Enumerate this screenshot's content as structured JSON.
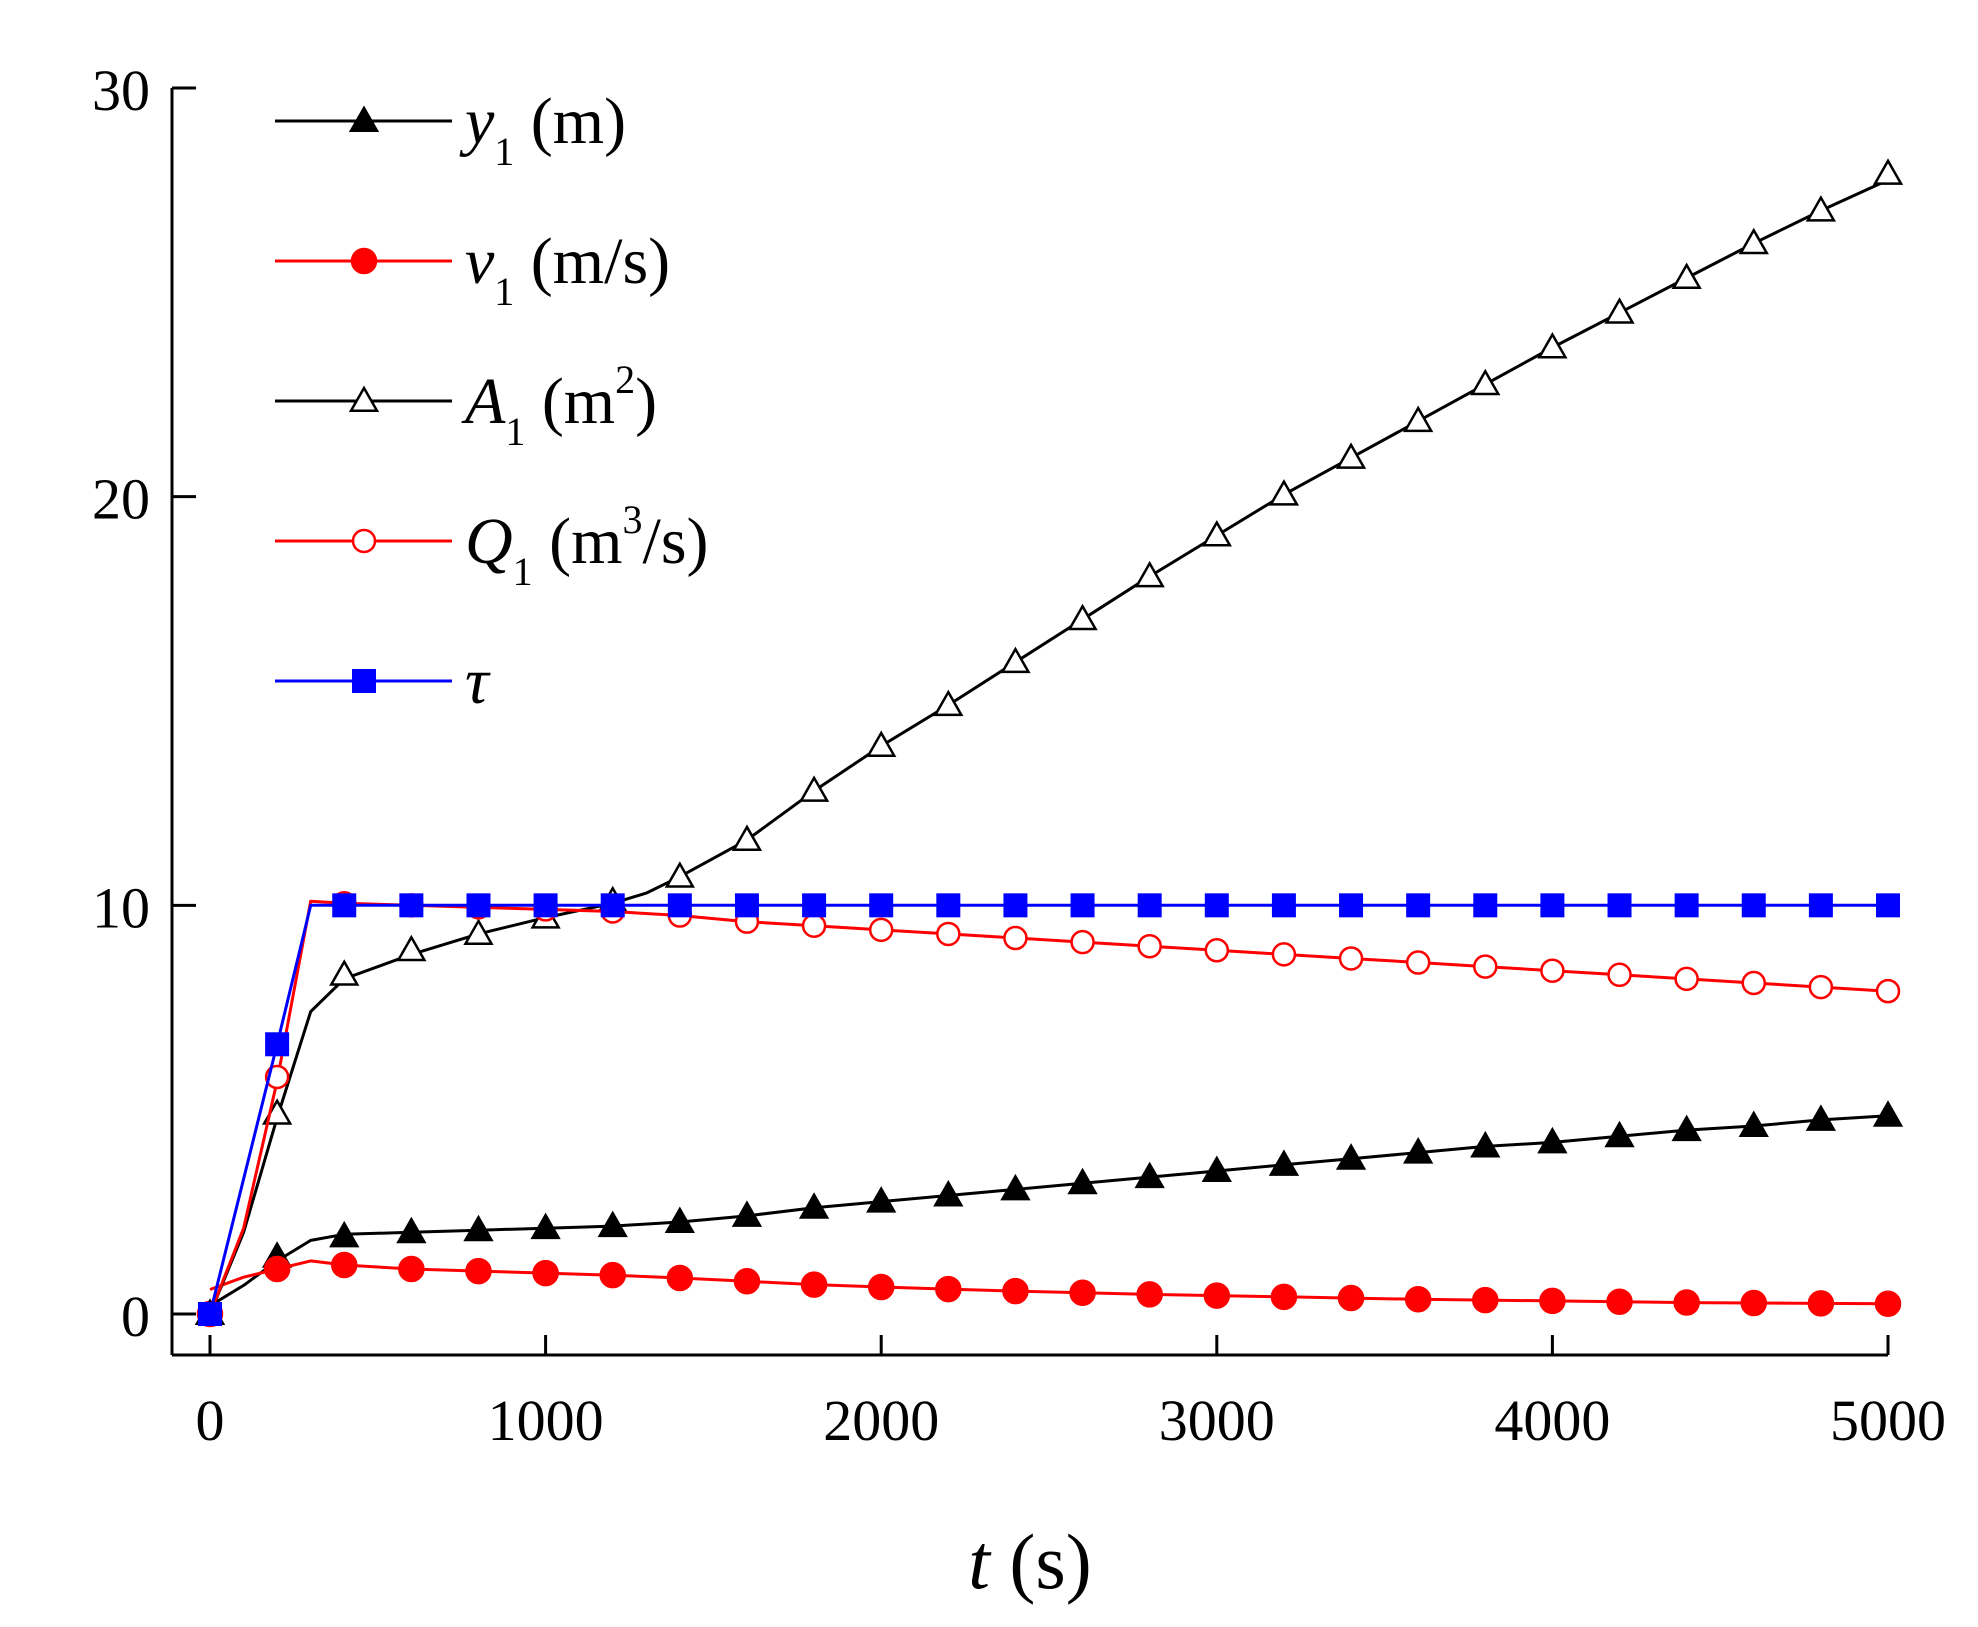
{
  "chart_data": {
    "type": "line",
    "title": "",
    "xlabel": "t (s)",
    "ylabel": "",
    "xlim": [
      -100,
      5000
    ],
    "ylim": [
      -1.1,
      30
    ],
    "xticks": [
      0,
      1000,
      2000,
      3000,
      4000,
      5000
    ],
    "yticks": [
      0,
      10,
      20,
      30
    ],
    "xtick_labels": [
      "0",
      "1000",
      "2000",
      "3000",
      "4000",
      "5000"
    ],
    "ytick_labels": [
      "0",
      "10",
      "20",
      "30"
    ],
    "grid": false,
    "legend_position": "top-left",
    "series": [
      {
        "name": "y1 (m)",
        "legend": {
          "sym": "y",
          "sub": "1",
          "unit_pre": " (m",
          "sup": "",
          "unit_post": ")"
        },
        "color": "#000000",
        "marker": "triangle-filled",
        "line": [
          [
            -30,
            -0.2
          ],
          [
            0,
            0.2
          ],
          [
            100,
            0.7
          ],
          [
            200,
            1.3
          ],
          [
            300,
            1.8
          ],
          [
            400,
            1.95
          ],
          [
            600,
            2.0
          ],
          [
            800,
            2.05
          ],
          [
            1000,
            2.1
          ],
          [
            1200,
            2.15
          ],
          [
            1400,
            2.25
          ],
          [
            1600,
            2.4
          ],
          [
            1800,
            2.6
          ],
          [
            2000,
            2.75
          ],
          [
            2200,
            2.9
          ],
          [
            2400,
            3.05
          ],
          [
            2600,
            3.2
          ],
          [
            2800,
            3.35
          ],
          [
            3000,
            3.5
          ],
          [
            3200,
            3.65
          ],
          [
            3400,
            3.8
          ],
          [
            3600,
            3.95
          ],
          [
            3800,
            4.1
          ],
          [
            4000,
            4.2
          ],
          [
            4200,
            4.35
          ],
          [
            4400,
            4.5
          ],
          [
            4600,
            4.6
          ],
          [
            4800,
            4.75
          ],
          [
            5000,
            4.85
          ]
        ],
        "markers": {
          "x": [
            0,
            200,
            400,
            600,
            800,
            1000,
            1200,
            1400,
            1600,
            1800,
            2000,
            2200,
            2400,
            2600,
            2800,
            3000,
            3200,
            3400,
            3600,
            3800,
            4000,
            4200,
            4400,
            4600,
            4800,
            5000
          ],
          "y": [
            0,
            1.4,
            1.9,
            2.0,
            2.05,
            2.1,
            2.15,
            2.25,
            2.4,
            2.6,
            2.75,
            2.9,
            3.05,
            3.2,
            3.35,
            3.5,
            3.65,
            3.8,
            3.95,
            4.1,
            4.2,
            4.35,
            4.5,
            4.6,
            4.75,
            4.85
          ]
        }
      },
      {
        "name": "v1 (m/s)",
        "legend": {
          "sym": "v",
          "sub": "1",
          "unit_pre": " (m/s",
          "sup": "",
          "unit_post": ")"
        },
        "color": "#ff0000",
        "marker": "circle-filled",
        "line": [
          [
            0,
            0.6
          ],
          [
            100,
            0.9
          ],
          [
            200,
            1.1
          ],
          [
            300,
            1.3
          ],
          [
            400,
            1.2
          ],
          [
            600,
            1.1
          ],
          [
            800,
            1.05
          ],
          [
            1000,
            1.0
          ],
          [
            1200,
            0.95
          ],
          [
            1400,
            0.88
          ],
          [
            1600,
            0.8
          ],
          [
            1800,
            0.72
          ],
          [
            2000,
            0.66
          ],
          [
            2200,
            0.61
          ],
          [
            2400,
            0.56
          ],
          [
            2600,
            0.52
          ],
          [
            2800,
            0.48
          ],
          [
            3000,
            0.45
          ],
          [
            3200,
            0.42
          ],
          [
            3400,
            0.39
          ],
          [
            3600,
            0.36
          ],
          [
            3800,
            0.34
          ],
          [
            4000,
            0.32
          ],
          [
            4200,
            0.3
          ],
          [
            4400,
            0.28
          ],
          [
            4600,
            0.27
          ],
          [
            4800,
            0.26
          ],
          [
            5000,
            0.25
          ]
        ],
        "markers": {
          "x": [
            0,
            200,
            400,
            600,
            800,
            1000,
            1200,
            1400,
            1600,
            1800,
            2000,
            2200,
            2400,
            2600,
            2800,
            3000,
            3200,
            3400,
            3600,
            3800,
            4000,
            4200,
            4400,
            4600,
            4800,
            5000
          ],
          "y": [
            0,
            1.1,
            1.2,
            1.1,
            1.05,
            1.0,
            0.95,
            0.88,
            0.8,
            0.72,
            0.66,
            0.61,
            0.56,
            0.52,
            0.48,
            0.45,
            0.42,
            0.39,
            0.36,
            0.34,
            0.32,
            0.3,
            0.28,
            0.27,
            0.26,
            0.25
          ]
        }
      },
      {
        "name": "A1 (m2)",
        "legend": {
          "sym": "A",
          "sub": "1",
          "unit_pre": " (m",
          "sup": "2",
          "unit_post": ")"
        },
        "color": "#000000",
        "marker": "triangle-open",
        "line": [
          [
            0,
            0
          ],
          [
            100,
            2.0
          ],
          [
            200,
            4.8
          ],
          [
            300,
            7.4
          ],
          [
            400,
            8.2
          ],
          [
            600,
            8.8
          ],
          [
            800,
            9.3
          ],
          [
            1000,
            9.7
          ],
          [
            1200,
            10.05
          ],
          [
            1300,
            10.3
          ],
          [
            1400,
            10.7
          ],
          [
            1600,
            11.6
          ],
          [
            1800,
            12.8
          ],
          [
            2000,
            13.9
          ],
          [
            2200,
            14.9
          ],
          [
            2400,
            15.95
          ],
          [
            2600,
            17.0
          ],
          [
            2800,
            18.05
          ],
          [
            3000,
            19.05
          ],
          [
            3200,
            20.05
          ],
          [
            3400,
            20.95
          ],
          [
            3600,
            21.85
          ],
          [
            3800,
            22.75
          ],
          [
            4000,
            23.65
          ],
          [
            4200,
            24.5
          ],
          [
            4400,
            25.35
          ],
          [
            4600,
            26.2
          ],
          [
            4800,
            27.0
          ],
          [
            5000,
            27.75
          ]
        ],
        "markers": {
          "x": [
            0,
            200,
            400,
            600,
            800,
            1000,
            1200,
            1400,
            1600,
            1800,
            2000,
            2200,
            2400,
            2600,
            2800,
            3000,
            3200,
            3400,
            3600,
            3800,
            4000,
            4200,
            4400,
            4600,
            4800,
            5000
          ],
          "y": [
            0,
            4.9,
            8.3,
            8.9,
            9.3,
            9.7,
            10.1,
            10.7,
            11.6,
            12.8,
            13.9,
            14.9,
            15.95,
            17.0,
            18.05,
            19.05,
            20.05,
            20.95,
            21.85,
            22.75,
            23.65,
            24.5,
            25.35,
            26.2,
            27.0,
            27.9
          ]
        }
      },
      {
        "name": "Q1 (m3/s)",
        "legend": {
          "sym": "Q",
          "sub": "1",
          "unit_pre": " (m",
          "sup": "3",
          "unit_post": "/s)"
        },
        "color": "#ff0000",
        "marker": "circle-open",
        "line": [
          [
            0,
            0
          ],
          [
            100,
            2.1
          ],
          [
            200,
            5.7
          ],
          [
            300,
            10.1
          ],
          [
            400,
            10.05
          ],
          [
            600,
            10.0
          ],
          [
            800,
            9.95
          ],
          [
            1000,
            9.9
          ],
          [
            1200,
            9.85
          ],
          [
            1400,
            9.75
          ],
          [
            1600,
            9.6
          ],
          [
            1800,
            9.5
          ],
          [
            2000,
            9.4
          ],
          [
            2200,
            9.3
          ],
          [
            2400,
            9.2
          ],
          [
            2600,
            9.1
          ],
          [
            2800,
            9.0
          ],
          [
            3000,
            8.9
          ],
          [
            3200,
            8.8
          ],
          [
            3400,
            8.7
          ],
          [
            3600,
            8.6
          ],
          [
            3800,
            8.5
          ],
          [
            4000,
            8.4
          ],
          [
            4200,
            8.3
          ],
          [
            4400,
            8.2
          ],
          [
            4600,
            8.1
          ],
          [
            4800,
            8.0
          ],
          [
            5000,
            7.9
          ]
        ],
        "markers": {
          "x": [
            0,
            200,
            400,
            600,
            800,
            1000,
            1200,
            1400,
            1600,
            1800,
            2000,
            2200,
            2400,
            2600,
            2800,
            3000,
            3200,
            3400,
            3600,
            3800,
            4000,
            4200,
            4400,
            4600,
            4800,
            5000
          ],
          "y": [
            0,
            5.8,
            10.05,
            10.0,
            9.95,
            9.9,
            9.85,
            9.75,
            9.6,
            9.5,
            9.4,
            9.3,
            9.2,
            9.1,
            9.0,
            8.9,
            8.8,
            8.7,
            8.6,
            8.5,
            8.4,
            8.3,
            8.2,
            8.1,
            8.0,
            7.9
          ]
        }
      },
      {
        "name": "τ",
        "legend": {
          "sym": "τ",
          "sub": "",
          "unit_pre": "",
          "sup": "",
          "unit_post": ""
        },
        "color": "#0000ff",
        "marker": "square-filled",
        "line": [
          [
            0,
            0
          ],
          [
            200,
            6.6
          ],
          [
            300,
            10.0
          ],
          [
            5000,
            10.0
          ]
        ],
        "markers": {
          "x": [
            0,
            200,
            400,
            600,
            800,
            1000,
            1200,
            1400,
            1600,
            1800,
            2000,
            2200,
            2400,
            2600,
            2800,
            3000,
            3200,
            3400,
            3600,
            3800,
            4000,
            4200,
            4400,
            4600,
            4800,
            5000
          ],
          "y": [
            0,
            6.6,
            10,
            10,
            10,
            10,
            10,
            10,
            10,
            10,
            10,
            10,
            10,
            10,
            10,
            10,
            10,
            10,
            10,
            10,
            10,
            10,
            10,
            10,
            10,
            10
          ]
        }
      }
    ]
  },
  "axis_title": {
    "symbol": "t",
    "unit": " (s)"
  }
}
